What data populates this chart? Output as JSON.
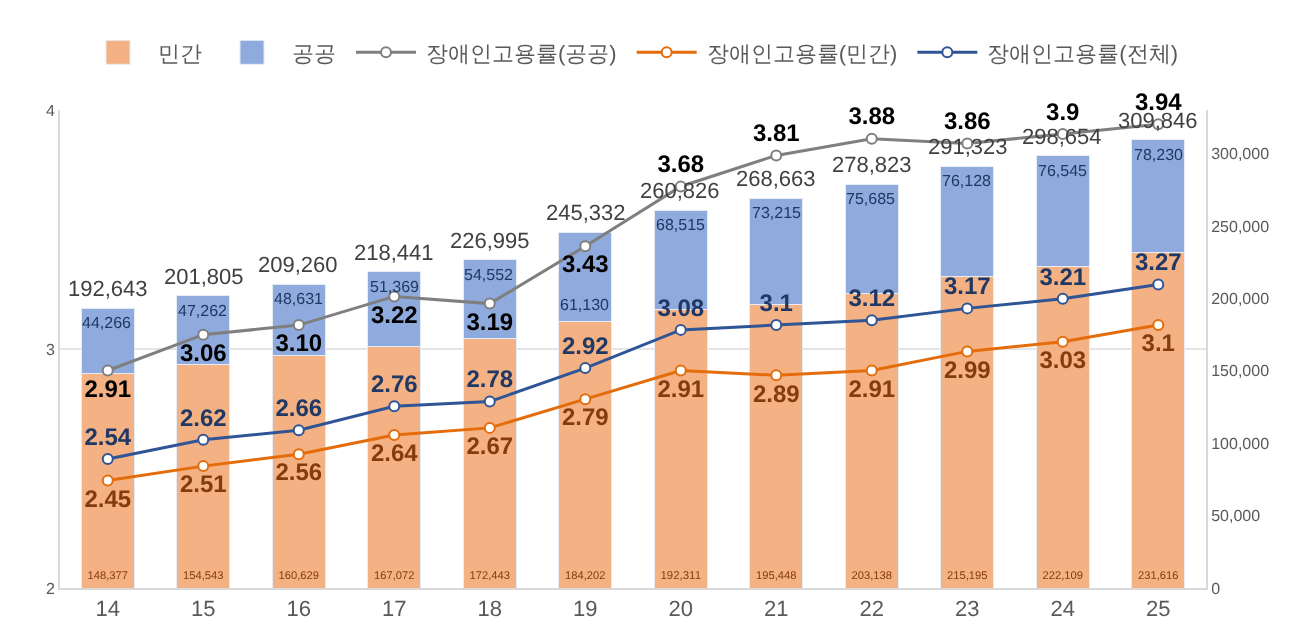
{
  "chart_data": {
    "type": "bar",
    "stacked": true,
    "categories": [
      "14",
      "15",
      "16",
      "17",
      "18",
      "19",
      "20",
      "21",
      "22",
      "23",
      "24",
      "25"
    ],
    "series": [
      {
        "name": "민간",
        "axis": "y2",
        "color": "#f4b183",
        "values": [
          148377,
          154543,
          160629,
          167072,
          172443,
          184202,
          192311,
          195448,
          203138,
          215195,
          222109,
          231616
        ],
        "value_labels": [
          "148,377",
          "154,543",
          "160,629",
          "167,072",
          "172,443",
          "184,202",
          "192,311",
          "195,448",
          "203,138",
          "215,195",
          "222,109",
          "231,616"
        ]
      },
      {
        "name": "공공",
        "axis": "y2",
        "color": "#8faadc",
        "values": [
          44266,
          47262,
          48631,
          51369,
          54552,
          61130,
          68515,
          73215,
          75685,
          76128,
          76545,
          78230
        ],
        "value_labels": [
          "44,266",
          "47,262",
          "48,631",
          "51,369",
          "54,552",
          "61,130",
          "68,515",
          "73,215",
          "75,685",
          "76,128",
          "76,545",
          "78,230"
        ]
      },
      {
        "name": "장애인고용률(공공)",
        "type": "line",
        "color": "#7f7f7f",
        "values": [
          2.91,
          3.06,
          3.1,
          3.22,
          3.19,
          3.43,
          3.68,
          3.81,
          3.88,
          3.86,
          3.9,
          3.94
        ],
        "value_labels": [
          "2.91",
          "3.06",
          "3.10",
          "3.22",
          "3.19",
          "3.43",
          "3.68",
          "3.81",
          "3.88",
          "3.86",
          "3.9",
          "3.94"
        ]
      },
      {
        "name": "장애인고용률(민간)",
        "type": "line",
        "color": "#e46c0a",
        "values": [
          2.45,
          2.51,
          2.56,
          2.64,
          2.67,
          2.79,
          2.91,
          2.89,
          2.91,
          2.99,
          3.03,
          3.1
        ],
        "value_labels": [
          "2.45",
          "2.51",
          "2.56",
          "2.64",
          "2.67",
          "2.79",
          "2.91",
          "2.89",
          "2.91",
          "2.99",
          "3.03",
          "3.1"
        ]
      },
      {
        "name": "장애인고용률(전체)",
        "type": "line",
        "color": "#2f5597",
        "values": [
          2.54,
          2.62,
          2.66,
          2.76,
          2.78,
          2.92,
          3.08,
          3.1,
          3.12,
          3.17,
          3.21,
          3.27
        ],
        "value_labels": [
          "2.54",
          "2.62",
          "2.66",
          "2.76",
          "2.78",
          "2.92",
          "3.08",
          "3.1",
          "3.12",
          "3.17",
          "3.21",
          "3.27"
        ]
      }
    ],
    "totals": [
      "192,643",
      "201,805",
      "209,260",
      "218,441",
      "226,995",
      "245,332",
      "260,826",
      "268,663",
      "278,823",
      "291,323",
      "298,654",
      "309,846"
    ],
    "ylim": [
      2,
      4
    ],
    "yticks": [
      2,
      3,
      4
    ],
    "y2lim": [
      0,
      330000
    ],
    "y2ticks": [
      0,
      {
        "value": 50000,
        "label": "50,000"
      },
      {
        "value": 100000,
        "label": "100,000"
      },
      {
        "value": 150000,
        "label": "150,000"
      },
      {
        "value": 200000,
        "label": "200,000"
      },
      {
        "value": 250000,
        "label": "250,000"
      },
      {
        "value": 300000,
        "label": "300,000"
      }
    ],
    "grid": "y",
    "legend": "top",
    "marker": "circle"
  }
}
